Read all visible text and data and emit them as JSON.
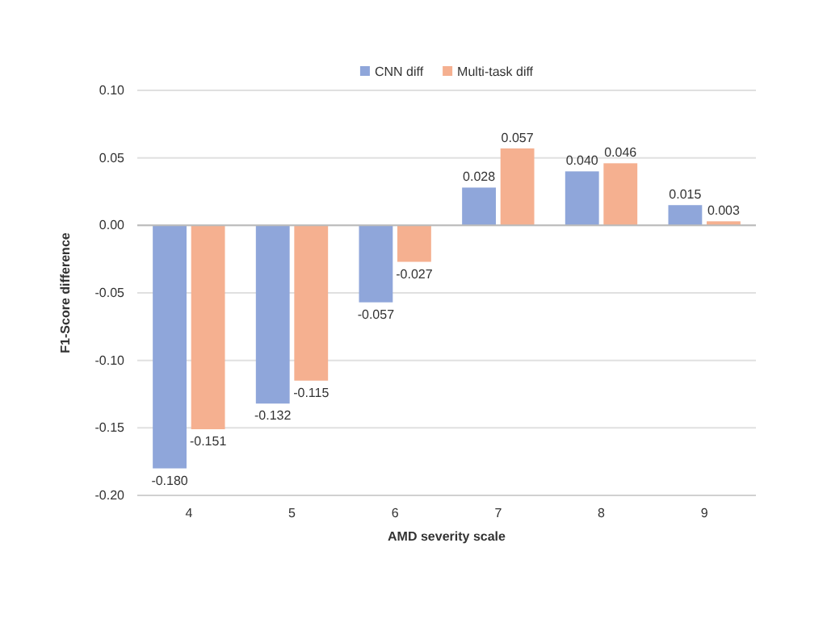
{
  "chart_data": {
    "type": "bar",
    "xlabel": "AMD severity scale",
    "ylabel": "F1-Score difference",
    "categories": [
      "4",
      "5",
      "6",
      "7",
      "8",
      "9"
    ],
    "series": [
      {
        "name": "CNN diff",
        "color": "#8fa6da",
        "values": [
          -0.18,
          -0.132,
          -0.057,
          0.028,
          0.04,
          0.015
        ],
        "value_labels": [
          "-0.180",
          "-0.132",
          "-0.057",
          "0.028",
          "0.040",
          "0.015"
        ]
      },
      {
        "name": "Multi-task diff",
        "color": "#f5b090",
        "values": [
          -0.151,
          -0.115,
          -0.027,
          0.057,
          0.046,
          0.003
        ],
        "value_labels": [
          "-0.151",
          "-0.115",
          "-0.027",
          "0.057",
          "0.046",
          "0.003"
        ]
      }
    ],
    "ylim": [
      -0.2,
      0.1
    ],
    "yticks": [
      {
        "value": -0.2,
        "label": "-0.20"
      },
      {
        "value": -0.15,
        "label": "-0.15"
      },
      {
        "value": -0.1,
        "label": "-0.10"
      },
      {
        "value": -0.05,
        "label": "-0.05"
      },
      {
        "value": 0,
        "label": "0.00"
      },
      {
        "value": 0.05,
        "label": "0.05"
      },
      {
        "value": 0.1,
        "label": "0.10"
      }
    ],
    "grid": "y",
    "legend": "top"
  }
}
